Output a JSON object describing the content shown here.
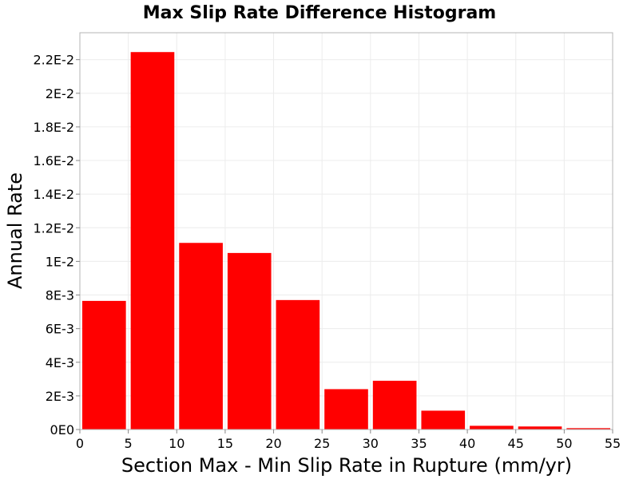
{
  "chart_data": {
    "type": "bar",
    "title": "Max Slip Rate Difference Histogram",
    "xlabel": "Section Max - Min Slip Rate in Rupture (mm/yr)",
    "ylabel": "Annual Rate",
    "xlim": [
      0,
      55
    ],
    "ylim": [
      0,
      0.0236
    ],
    "bin_width": 5,
    "x": [
      2.5,
      7.5,
      12.5,
      17.5,
      22.5,
      27.5,
      32.5,
      37.5,
      42.5,
      47.5,
      52.5
    ],
    "values": [
      0.00765,
      0.02245,
      0.0111,
      0.0105,
      0.0077,
      0.0024,
      0.0029,
      0.00112,
      0.00022,
      0.00018,
      8e-05
    ],
    "x_ticks": [
      0,
      5,
      10,
      15,
      20,
      25,
      30,
      35,
      40,
      45,
      50,
      55
    ],
    "x_tick_labels": [
      "0",
      "5",
      "10",
      "15",
      "20",
      "25",
      "30",
      "35",
      "40",
      "45",
      "50",
      "55"
    ],
    "y_ticks": [
      0,
      0.002,
      0.004,
      0.006,
      0.008,
      0.01,
      0.012,
      0.014,
      0.016,
      0.018,
      0.02,
      0.022
    ],
    "y_tick_labels": [
      "0E0",
      "2E-3",
      "4E-3",
      "6E-3",
      "8E-3",
      "1E-2",
      "1.2E-2",
      "1.4E-2",
      "1.6E-2",
      "1.8E-2",
      "2E-2",
      "2.2E-2"
    ],
    "grid": true,
    "legend": "none",
    "bar_color": "#ff0000",
    "grid_color": "#ececec",
    "frame_color": "#b4b4b4"
  }
}
